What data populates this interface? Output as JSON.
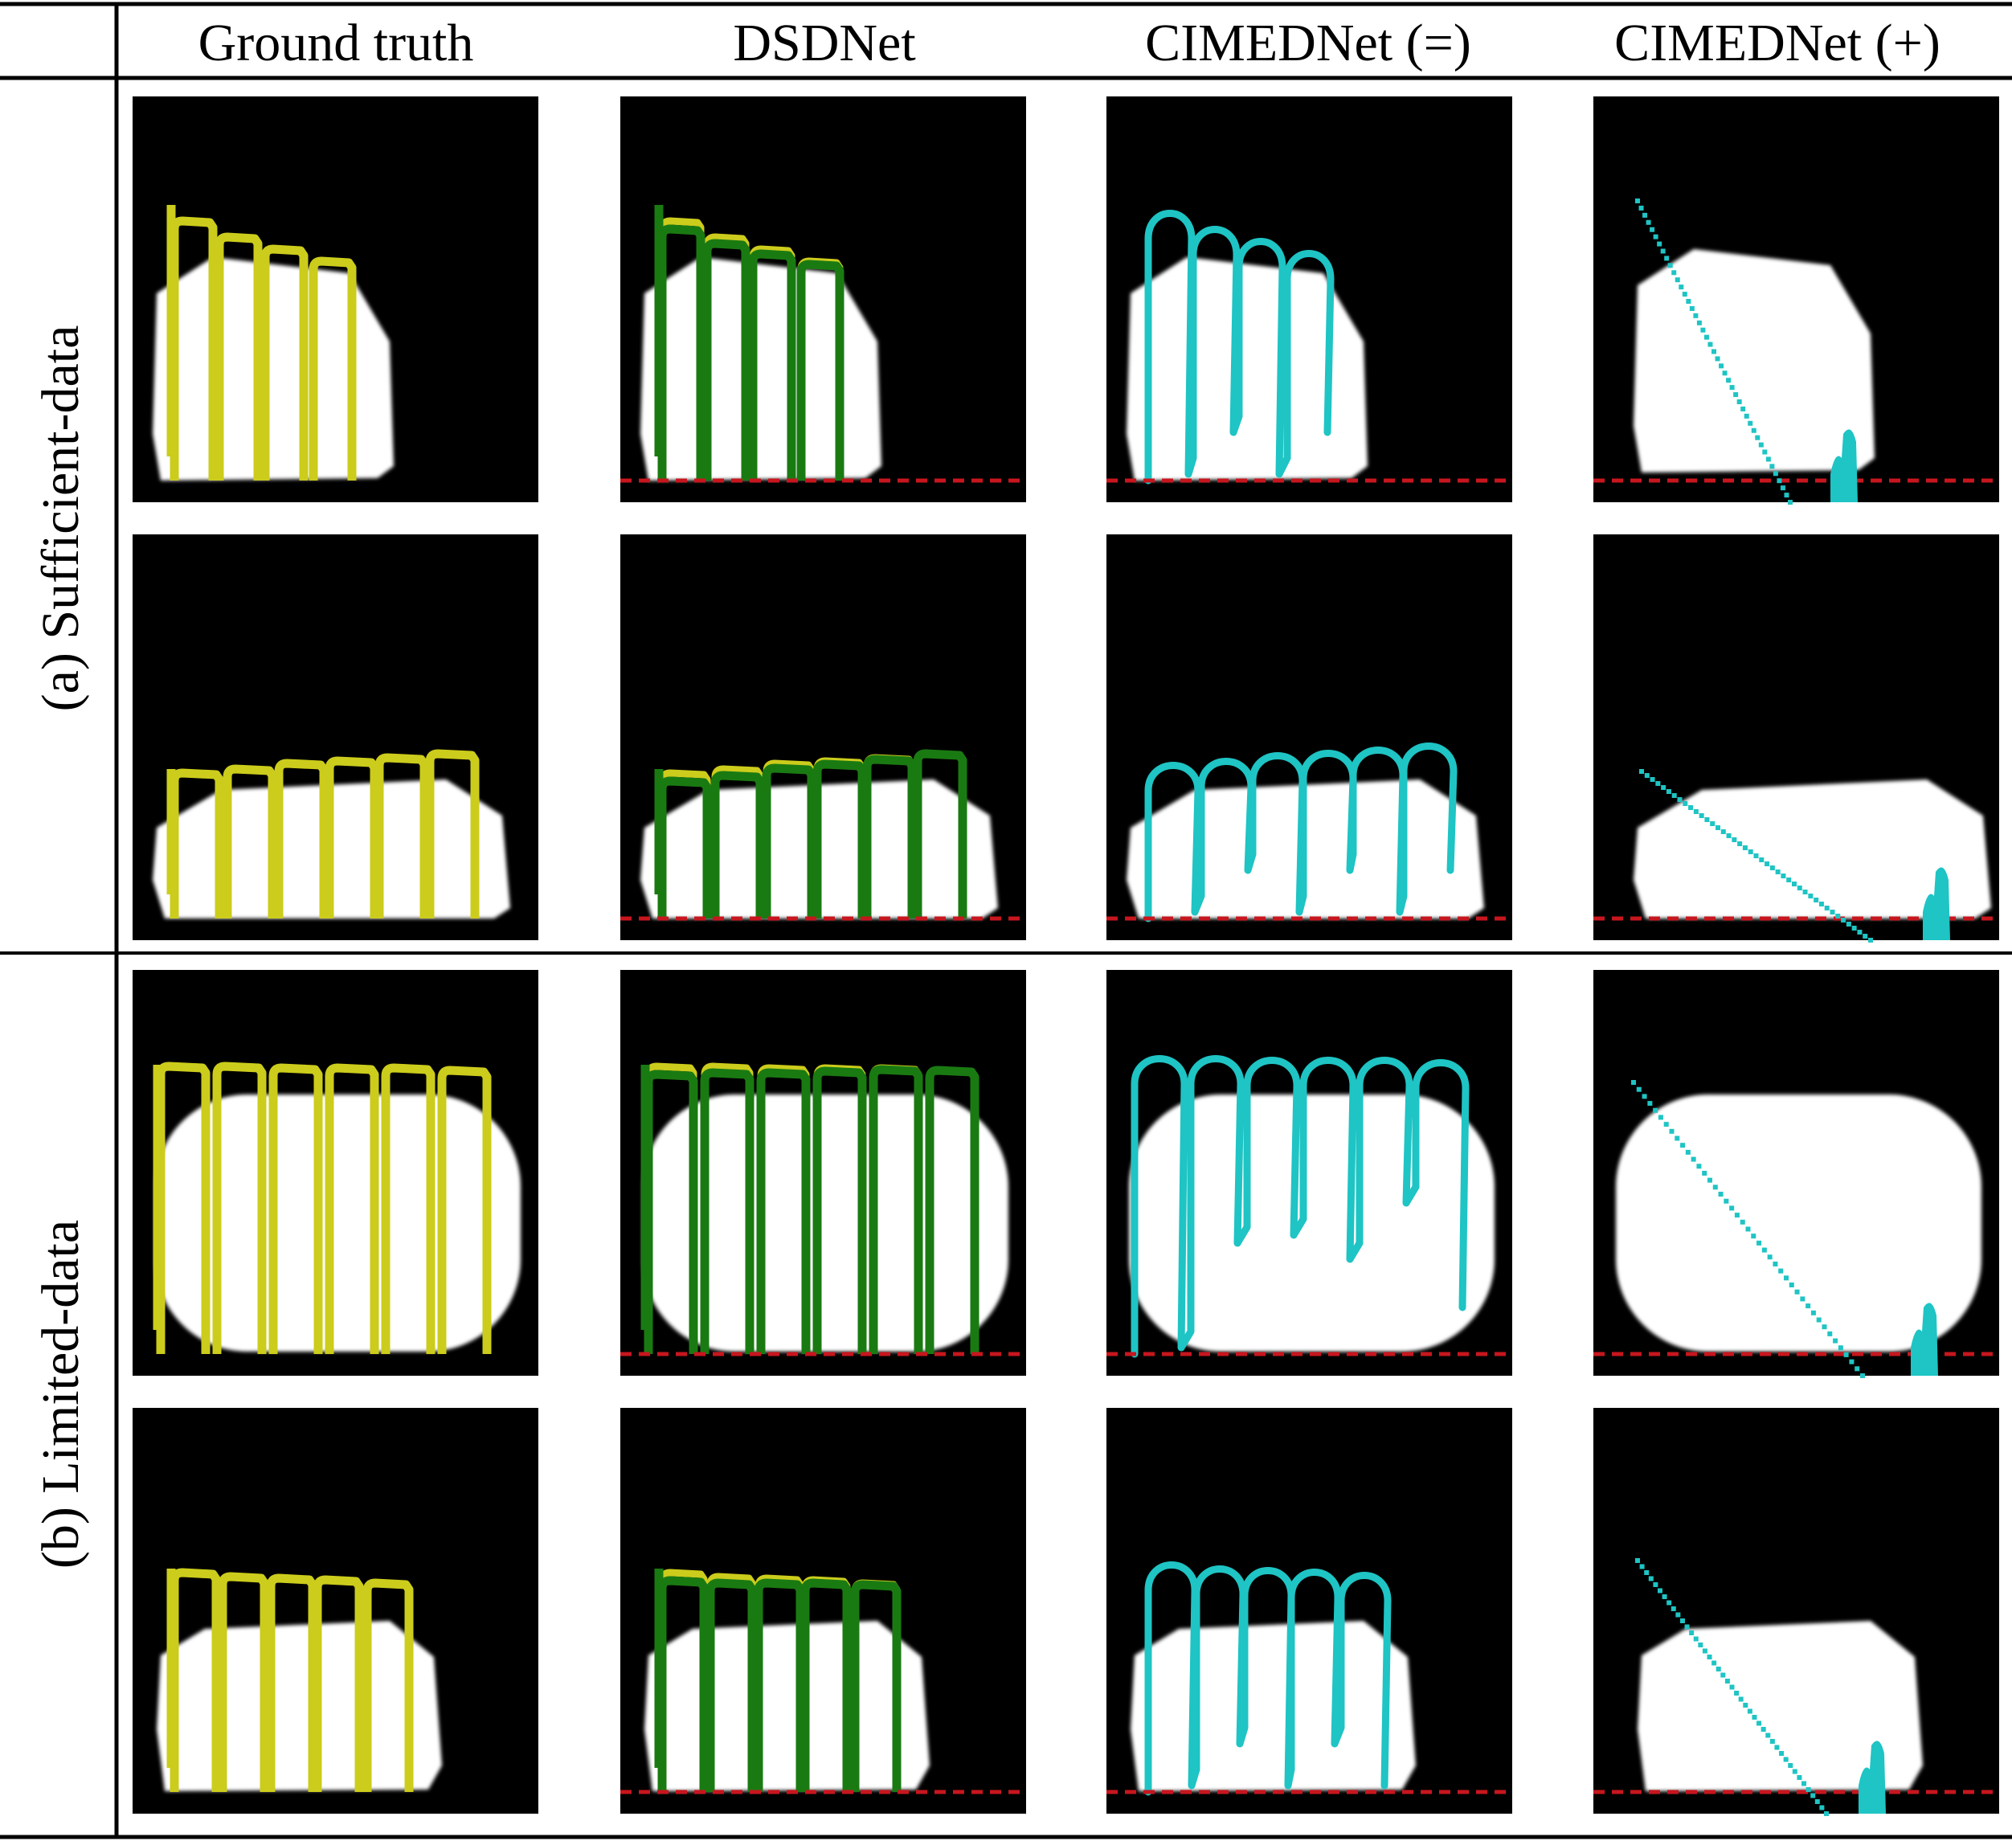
{
  "figure": {
    "column_headers": [
      "Ground truth",
      "DSDNet",
      "CIMEDNet (=)",
      "CIMEDNet (+)"
    ],
    "row_groups": [
      "(a) Sufficient-data",
      "(b) Limited-data"
    ]
  },
  "colors": {
    "panel_background": "#000000",
    "object": "#ffffff",
    "ground_truth_path": "#cccc1c",
    "dsdnet_path": "#1a7a12",
    "cimednet_path": "#1fc4c4",
    "baseline_dashed": "#c8161e",
    "rule": "#000000"
  }
}
